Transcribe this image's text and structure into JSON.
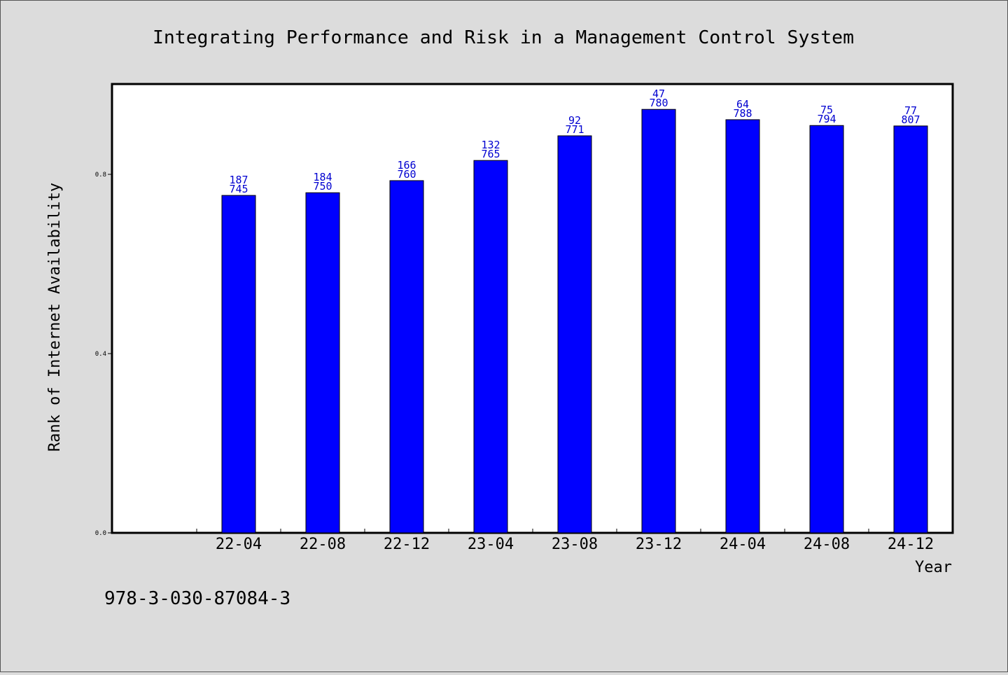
{
  "chart_data": {
    "type": "bar",
    "title": "Integrating Performance and Risk in a Management Control System",
    "xlabel": "Year",
    "ylabel": "Rank of Internet Availability",
    "footer": "978-3-030-87084-3",
    "categories": [
      "22-04",
      "22-08",
      "22-12",
      "23-04",
      "23-08",
      "23-12",
      "24-04",
      "24-08",
      "24-12"
    ],
    "values": [
      0.753,
      0.759,
      0.786,
      0.831,
      0.886,
      0.945,
      0.922,
      0.909,
      0.908
    ],
    "label_top": [
      "187",
      "184",
      "166",
      "132",
      "92",
      "47",
      "64",
      "75",
      "77"
    ],
    "label_bottom": [
      "745",
      "750",
      "760",
      "765",
      "771",
      "780",
      "788",
      "794",
      "807"
    ],
    "yticks": [
      "0.0",
      "0.4",
      "0.8"
    ],
    "ylim": [
      0,
      1.0
    ],
    "bar_color": "#0000ff",
    "grid": false
  }
}
